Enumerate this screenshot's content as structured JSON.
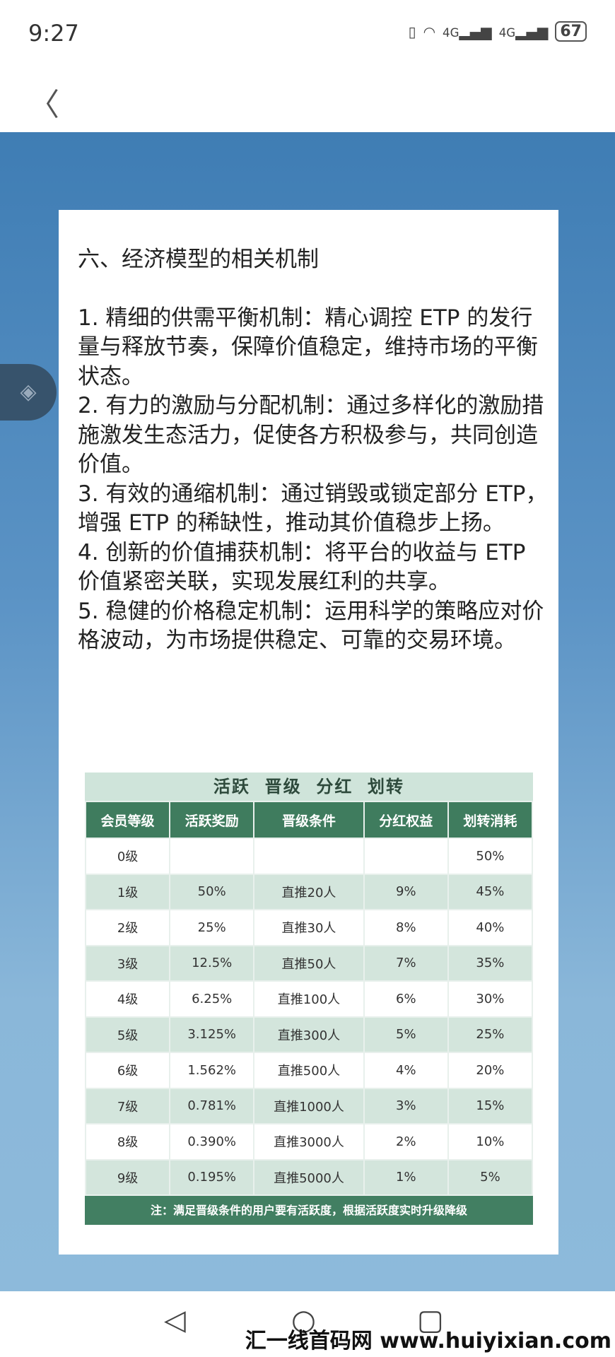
{
  "status": {
    "time": "9:27",
    "battery": "67",
    "network": "4G"
  },
  "article": {
    "heading": "六、经济模型的相关机制",
    "paragraphs": [
      "1. 精细的供需平衡机制：精心调控 ETP 的发行量与释放节奏，保障价值稳定，维持市场的平衡状态。",
      "2. 有力的激励与分配机制：通过多样化的激励措施激发生态活力，促使各方积极参与，共同创造价值。",
      "3. 有效的通缩机制：通过销毁或锁定部分 ETP，增强 ETP 的稀缺性，推动其价值稳步上扬。",
      "4. 创新的价值捕获机制：将平台的收益与 ETP 价值紧密关联，实现发展红利的共享。",
      "5. 稳健的价格稳定机制：运用科学的策略应对价格波动，为市场提供稳定、可靠的交易环境。"
    ]
  },
  "table": {
    "title": "活跃  晋级  分红  划转",
    "headers": [
      "会员等级",
      "活跃奖励",
      "晋级条件",
      "分红权益",
      "划转消耗"
    ],
    "rows": [
      [
        "0级",
        "",
        "",
        "",
        "50%"
      ],
      [
        "1级",
        "50%",
        "直推20人",
        "9%",
        "45%"
      ],
      [
        "2级",
        "25%",
        "直推30人",
        "8%",
        "40%"
      ],
      [
        "3级",
        "12.5%",
        "直推50人",
        "7%",
        "35%"
      ],
      [
        "4级",
        "6.25%",
        "直推100人",
        "6%",
        "30%"
      ],
      [
        "5级",
        "3.125%",
        "直推300人",
        "5%",
        "25%"
      ],
      [
        "6级",
        "1.562%",
        "直推500人",
        "4%",
        "20%"
      ],
      [
        "7级",
        "0.781%",
        "直推1000人",
        "3%",
        "15%"
      ],
      [
        "8级",
        "0.390%",
        "直推3000人",
        "2%",
        "10%"
      ],
      [
        "9级",
        "0.195%",
        "直推5000人",
        "1%",
        "5%"
      ]
    ],
    "note": "注：满足晋级条件的用户要有活跃度，根据活跃度实时升级降级"
  },
  "watermark": "汇一线首码网 www.huiyixian.com",
  "colors": {
    "header_green": "#3f7c5e",
    "row_alt": "#d3e5dc",
    "background_blue": "#3f7db4"
  }
}
